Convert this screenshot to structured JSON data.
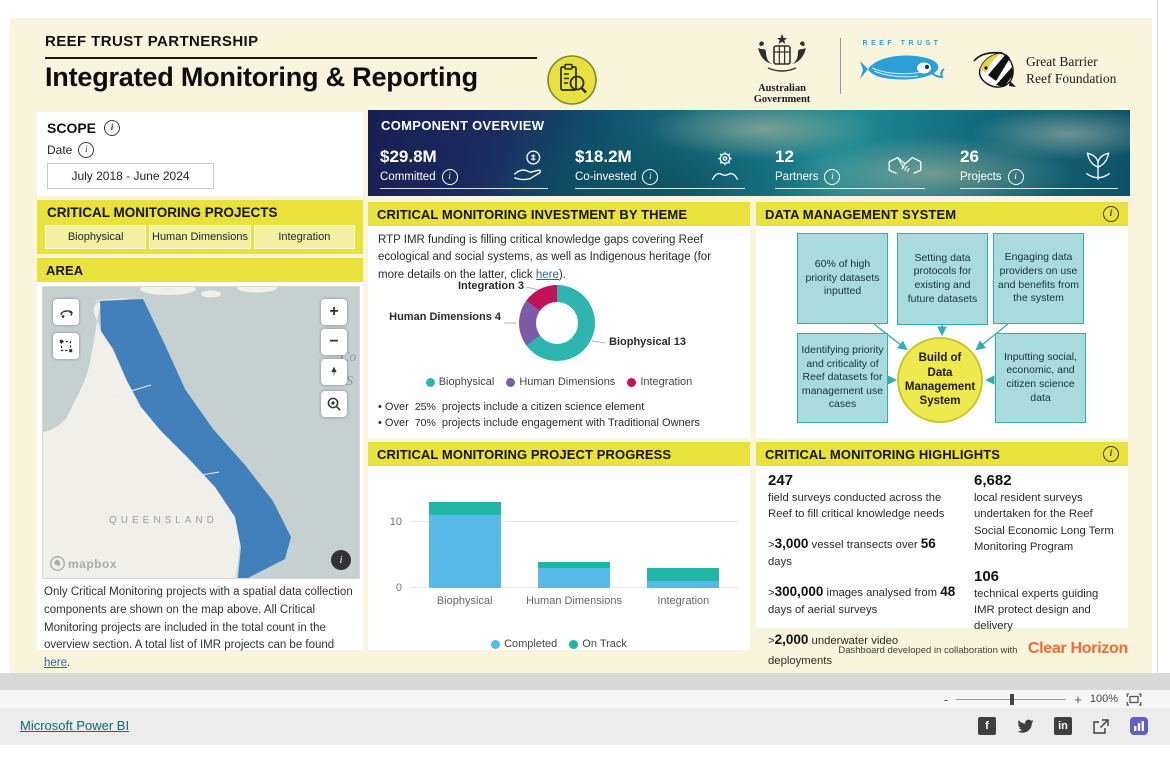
{
  "header": {
    "kicker": "REEF TRUST PARTNERSHIP",
    "title": "Integrated Monitoring & Reporting",
    "gov_logo_text": "Australian Government",
    "reef_trust_logo_text": "REEF TRUST",
    "gbrf_line1": "Great Barrier",
    "gbrf_line2": "Reef Foundation"
  },
  "icons": {
    "info": "i",
    "map_zoom_in": "+",
    "map_zoom_out": "−",
    "slider_minus": "-",
    "slider_plus": "+",
    "facebook": "f",
    "linkedin": "in"
  },
  "scope": {
    "title": "SCOPE",
    "date_label": "Date",
    "date_value": "July 2018 - June 2024"
  },
  "overview": {
    "title": "COMPONENT OVERVIEW",
    "metrics": [
      {
        "value": "$29.8M",
        "label": "Committed"
      },
      {
        "value": "$18.2M",
        "label": "Co-invested"
      },
      {
        "value": "12",
        "label": "Partners"
      },
      {
        "value": "26",
        "label": "Projects"
      }
    ]
  },
  "filter": {
    "title": "CRITICAL MONITORING PROJECTS",
    "buttons": [
      "Biophysical",
      "Human Dimensions",
      "Integration"
    ]
  },
  "area": {
    "title": "AREA",
    "state_label": "QUEENSLAND",
    "sea_label_1": "Co",
    "sea_label_2": "S",
    "mapbox": "mapbox",
    "note_pre": "Only Critical Monitoring projects with a spatial data collection components are shown on the map above. All Critical Monitoring projects are included in the total count in the overview section. A total list of IMR projects can be found ",
    "note_link": "here",
    "note_post": "."
  },
  "theme": {
    "title": "CRITICAL MONITORING INVESTMENT BY THEME",
    "intro_pre": "RTP IMR funding is filling critical knowledge gaps covering Reef ecological and social systems, as well as Indigenous heritage (for more details on the latter, click ",
    "intro_link": "here",
    "intro_post": ").",
    "bullets": [
      {
        "bullet": "•",
        "pre": "Over",
        "value": "25%",
        "post": "projects include a citizen science element"
      },
      {
        "bullet": "•",
        "pre": "Over",
        "value": "70%",
        "post": "projects include engagement with Traditional Owners"
      }
    ]
  },
  "dms": {
    "title": "DATA MANAGEMENT SYSTEM",
    "boxes": [
      "60% of high priority datasets inputted",
      "Setting data protocols for existing and future datasets",
      "Engaging data providers on use and benefits from the system",
      "Identifying priority and criticality of Reef datasets for management use cases",
      "Inputting social, economic, and citizen science data"
    ],
    "center": "Build of Data Management System"
  },
  "progress": {
    "title": "CRITICAL MONITORING PROJECT PROGRESS"
  },
  "highlights": {
    "title": "CRITICAL MONITORING HIGHLIGHTS",
    "left": {
      "stat1_value": "247",
      "stat1_text": "field surveys conducted across the Reef to fill critical knowledge needs",
      "line1": {
        "gt": ">",
        "num": "3,000",
        "mid": " vessel transects over ",
        "num2": "56",
        "tail": " days"
      },
      "line2": {
        "gt": ">",
        "num": "300,000",
        "mid": " images analysed from ",
        "num2": "48",
        "tail": " days of aerial surveys"
      },
      "line3": {
        "gt": ">",
        "num": "2,000",
        "mid": " underwater video deployments",
        "num2": "",
        "tail": ""
      }
    },
    "right": {
      "stat1_value": "6,682",
      "stat1_text": "local resident surveys undertaken for the Reef Social Economic Long Term Monitoring Program",
      "stat2_value": "106",
      "stat2_text": "technical experts guiding IMR protect design and delivery"
    }
  },
  "collab": {
    "text": "Dashboard developed in collaboration with",
    "brand": "Clear Horizon"
  },
  "footer": {
    "zoom_level": "100%",
    "powerbi_link": "Microsoft Power BI"
  },
  "colors": {
    "accent_yellow": "#e9e23c",
    "dashboard_bg": "#f8f5dc",
    "donut_biophysical": "#2eb5af",
    "donut_human": "#7c5ca6",
    "donut_integration": "#c01358",
    "bar_completed": "#57b9e8",
    "bar_ontrack": "#21b5a6",
    "dms_box": "#a9dbdc",
    "dms_border": "#2fafb2",
    "dms_circle": "#eee94f",
    "map_reef_blue": "#4180ba",
    "link_blue": "#2b6a9b",
    "clear_horizon_orange": "#f26b35",
    "powerbi_link_teal": "#0f6a6e"
  },
  "chart_data": [
    {
      "type": "pie",
      "donut": true,
      "title": "Critical Monitoring Investment by Theme",
      "categories": [
        "Biophysical",
        "Human Dimensions",
        "Integration"
      ],
      "values": [
        13,
        4,
        3
      ],
      "colors": [
        "#2eb5af",
        "#7c5ca6",
        "#c01358"
      ],
      "labels": [
        "Biophysical 13",
        "Human Dimensions 4",
        "Integration 3"
      ],
      "legend_position": "bottom"
    },
    {
      "type": "bar",
      "stacked": true,
      "title": "Critical Monitoring Project Progress",
      "categories": [
        "Biophysical",
        "Human Dimensions",
        "Integration"
      ],
      "series": [
        {
          "name": "Completed",
          "color": "#57b9e8",
          "values": [
            11,
            3,
            1
          ]
        },
        {
          "name": "On Track",
          "color": "#21b5a6",
          "values": [
            2,
            1,
            2
          ]
        }
      ],
      "ylim": [
        0,
        16
      ],
      "yticks": [
        0,
        10
      ],
      "legend_position": "bottom"
    }
  ]
}
